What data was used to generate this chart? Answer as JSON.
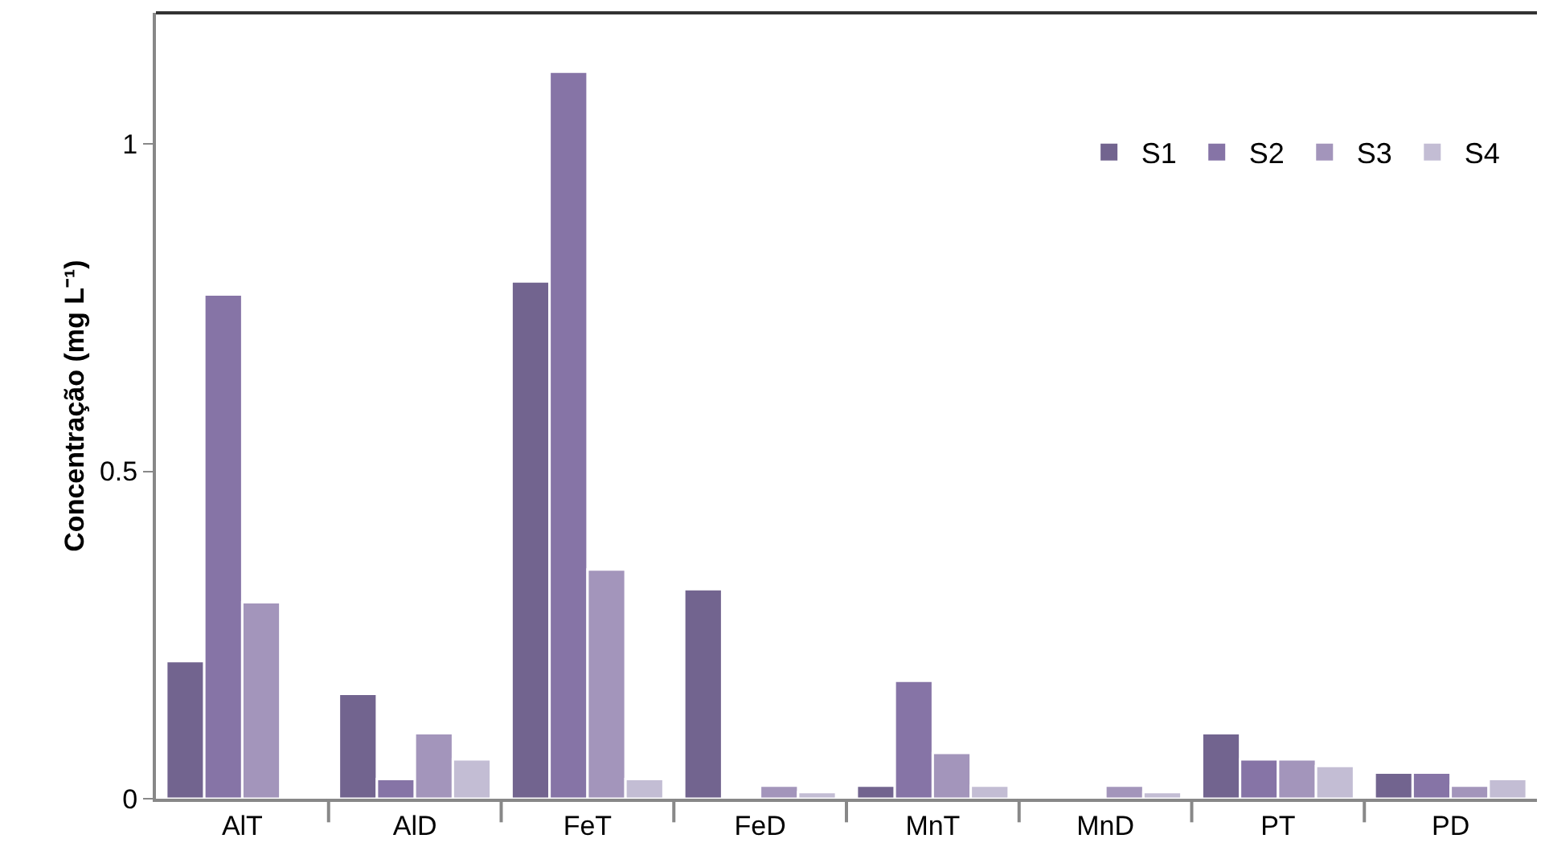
{
  "chart_data": {
    "type": "bar",
    "ylabel": "Concentração (mg L⁻¹)",
    "categories": [
      "AlT",
      "AlD",
      "FeT",
      "FeD",
      "MnT",
      "MnD",
      "PT",
      "PD"
    ],
    "series": [
      {
        "name": "S1",
        "color": "#72648f",
        "values": [
          0.21,
          0.16,
          0.79,
          0.32,
          0.02,
          null,
          0.1,
          0.04
        ]
      },
      {
        "name": "S2",
        "color": "#8674a6",
        "values": [
          0.77,
          0.03,
          1.11,
          null,
          0.18,
          null,
          0.06,
          0.04
        ]
      },
      {
        "name": "S3",
        "color": "#a395bb",
        "values": [
          0.3,
          0.1,
          0.35,
          0.02,
          0.07,
          0.02,
          0.06,
          0.02
        ]
      },
      {
        "name": "S4",
        "color": "#c3bdd4",
        "values": [
          null,
          0.06,
          0.03,
          0.01,
          0.02,
          0.01,
          0.05,
          0.03
        ]
      }
    ],
    "ylim": [
      0,
      1.2
    ],
    "yticks": [
      0,
      0.5,
      1
    ],
    "grid": false,
    "legend": "top right"
  }
}
